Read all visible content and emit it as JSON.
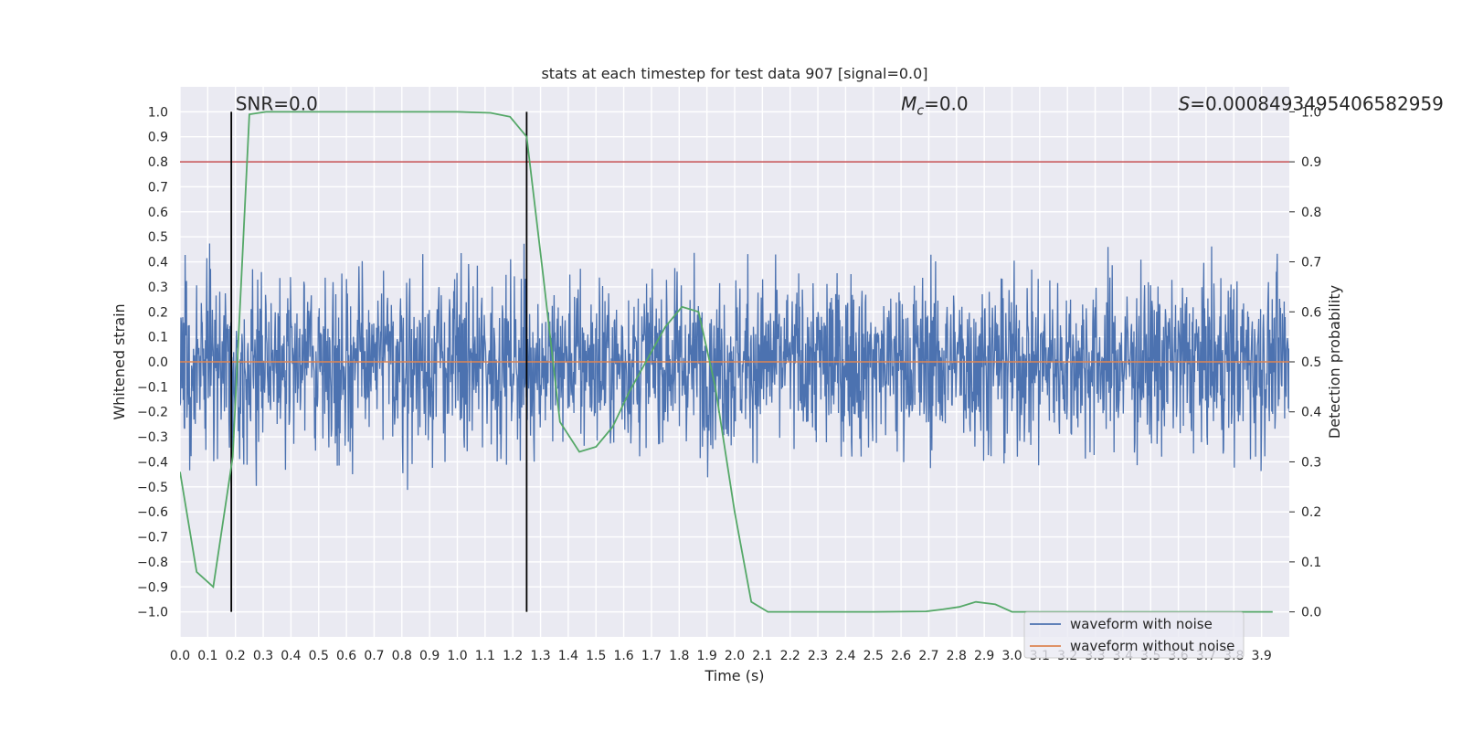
{
  "chart_data": {
    "type": "line",
    "title": "stats at each timestep for test data 907 [signal=0.0]",
    "xlabel": "Time (s)",
    "ylabel": "Whitened strain",
    "y2label": "Detection probability",
    "xlim": [
      0.0,
      4.0
    ],
    "ylim": [
      -1.1,
      1.1
    ],
    "y2lim": [
      -0.05,
      1.05
    ],
    "xticks": [
      "0.0",
      "0.1",
      "0.2",
      "0.3",
      "0.4",
      "0.5",
      "0.6",
      "0.7",
      "0.8",
      "0.9",
      "1.0",
      "1.1",
      "1.2",
      "1.3",
      "1.4",
      "1.5",
      "1.6",
      "1.7",
      "1.8",
      "1.9",
      "2.0",
      "2.1",
      "2.2",
      "2.3",
      "2.4",
      "2.5",
      "2.6",
      "2.7",
      "2.8",
      "2.9",
      "3.0",
      "3.1",
      "3.2",
      "3.3",
      "3.4",
      "3.5",
      "3.6",
      "3.7",
      "3.8",
      "3.9"
    ],
    "yticks": [
      "1.0",
      "0.9",
      "0.8",
      "0.7",
      "0.6",
      "0.5",
      "0.4",
      "0.3",
      "0.2",
      "0.1",
      "0.0",
      "−0.1",
      "−0.2",
      "−0.3",
      "−0.4",
      "−0.5",
      "−0.6",
      "−0.7",
      "−0.8",
      "−0.9",
      "−1.0"
    ],
    "y2ticks": [
      "1.0",
      "0.9",
      "0.8",
      "0.7",
      "0.6",
      "0.5",
      "0.4",
      "0.3",
      "0.2",
      "0.1",
      "0.0"
    ],
    "grid": true,
    "legend_position": "lower-right",
    "annotations": {
      "snr": "SNR=0.0",
      "mc_symbol": "M",
      "mc_sub": "c",
      "mc_value": "=0.0",
      "s_symbol": "S",
      "s_value": "=0.0008493495406582959"
    },
    "threshold_y2": 0.9,
    "vertical_lines_x": [
      0.185,
      1.25
    ],
    "series": [
      {
        "name": "waveform with noise",
        "color": "#4c72b0",
        "style": "noise",
        "x_range": [
          0.0,
          4.0
        ],
        "y_range": [
          -1.0,
          0.99
        ]
      },
      {
        "name": "waveform without noise",
        "color": "#dd8452",
        "x": [
          0.0,
          4.0
        ],
        "y": [
          0.0,
          0.0
        ]
      },
      {
        "name": "",
        "color": "#55a868",
        "axis": "right",
        "x": [
          0.0,
          0.06,
          0.12,
          0.19,
          0.25,
          0.31,
          0.5,
          0.75,
          1.0,
          1.12,
          1.19,
          1.25,
          1.31,
          1.37,
          1.44,
          1.5,
          1.56,
          1.62,
          1.69,
          1.75,
          1.81,
          1.87,
          1.93,
          2.0,
          2.06,
          2.12,
          2.19,
          2.5,
          2.69,
          2.75,
          2.81,
          2.87,
          2.94,
          3.0,
          3.25,
          3.5,
          3.75,
          3.94
        ],
        "y": [
          0.28,
          0.08,
          0.05,
          0.31,
          0.995,
          1.0,
          1.0,
          1.0,
          1.0,
          0.998,
          0.99,
          0.95,
          0.67,
          0.38,
          0.32,
          0.33,
          0.37,
          0.44,
          0.51,
          0.57,
          0.61,
          0.6,
          0.45,
          0.2,
          0.02,
          0.0,
          0.0,
          0.0,
          0.001,
          0.005,
          0.01,
          0.02,
          0.015,
          0.0,
          0.0,
          0.0,
          0.0,
          0.0
        ]
      }
    ]
  }
}
